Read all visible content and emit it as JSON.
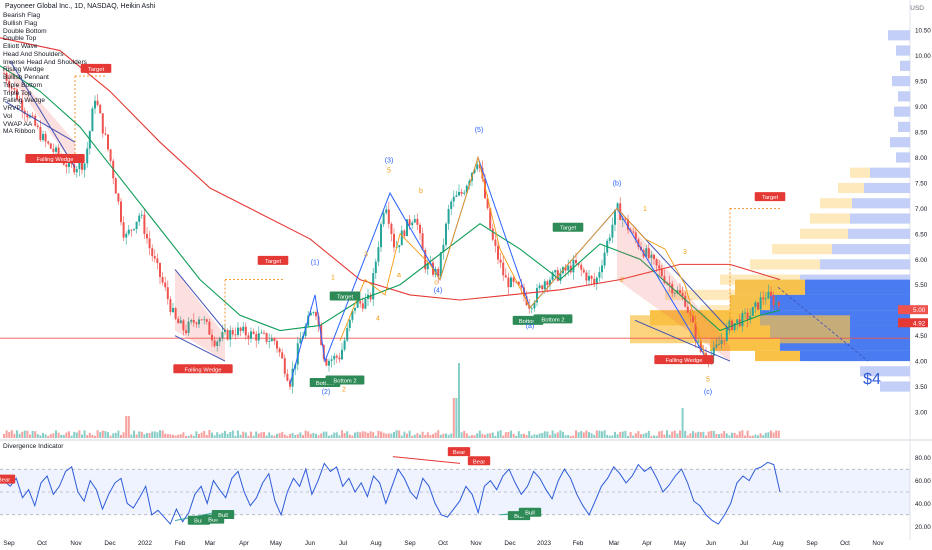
{
  "header": {
    "title": "Payoneer Global Inc., 1D, NASDAQ, Heikin Ashi",
    "currency": "USD"
  },
  "indicators": [
    "Bearish Flag",
    "Bullish Flag",
    "Double Bottom",
    "Double Top",
    "Elliott Wave",
    "Head And Shoulders",
    "Inverse Head And Shoulders",
    "Rising Wedge",
    "Bullish Pennant",
    "Triple Bottom",
    "Triple Top",
    "Falling Wedge",
    "VRVP",
    "Vol",
    "VWAP AA",
    "MA Ribbon"
  ],
  "colors": {
    "up": "#26a69a",
    "down": "#ef5350",
    "ma_green": "#0f9d58",
    "ma_red": "#e53935",
    "wedge": "#3f51b5",
    "wave": "#2962ff",
    "wave_minor": "#f39c12",
    "target": "#f57c00",
    "signal_green": "#2e8b57",
    "signal_red": "#e53935",
    "osc": "#2e5bd9",
    "vol_profile_blue": "#b9c7f5",
    "vol_profile_yellow": "#fde7b4"
  },
  "chart_data": [
    {
      "type": "candlestick",
      "y_axis": {
        "min": 3.0,
        "max": 10.7,
        "ticks": [
          "10.50",
          "10.00",
          "9.50",
          "9.00",
          "8.50",
          "8.00",
          "7.50",
          "7.00",
          "6.50",
          "6.00",
          "5.50",
          "5.00",
          "4.50",
          "4.00",
          "3.50",
          "3.00"
        ],
        "tick_values": [
          10.5,
          10.0,
          9.5,
          9.0,
          8.5,
          8.0,
          7.5,
          7.0,
          6.5,
          6.0,
          5.5,
          5.0,
          4.5,
          4.0,
          3.5,
          3.0
        ]
      },
      "x_axis": {
        "ticks": [
          "Sep",
          "Oct",
          "Nov",
          "Dec",
          "2022",
          "Feb",
          "Mar",
          "Apr",
          "May",
          "Jun",
          "Jul",
          "Aug",
          "Sep",
          "Oct",
          "Nov",
          "Dec",
          "2023",
          "Feb",
          "Mar",
          "Apr",
          "May",
          "Jun",
          "Jul",
          "Aug",
          "Sep",
          "Oct",
          "Nov"
        ]
      },
      "price_path": [
        [
          0,
          9.8
        ],
        [
          20,
          9.1
        ],
        [
          45,
          8.3
        ],
        [
          70,
          7.8
        ],
        [
          85,
          7.9
        ],
        [
          95,
          9.2
        ],
        [
          110,
          8.0
        ],
        [
          125,
          6.4
        ],
        [
          140,
          6.9
        ],
        [
          150,
          6.2
        ],
        [
          165,
          5.4
        ],
        [
          175,
          4.8
        ],
        [
          185,
          4.6
        ],
        [
          200,
          4.9
        ],
        [
          215,
          4.4
        ],
        [
          235,
          4.6
        ],
        [
          255,
          4.5
        ],
        [
          275,
          4.4
        ],
        [
          290,
          3.6
        ],
        [
          300,
          4.4
        ],
        [
          315,
          5.1
        ],
        [
          325,
          4.0
        ],
        [
          340,
          4.1
        ],
        [
          355,
          5.1
        ],
        [
          370,
          5.2
        ],
        [
          385,
          7.2
        ],
        [
          395,
          6.2
        ],
        [
          405,
          6.6
        ],
        [
          415,
          6.9
        ],
        [
          425,
          5.9
        ],
        [
          438,
          5.7
        ],
        [
          450,
          7.1
        ],
        [
          462,
          7.3
        ],
        [
          478,
          8.0
        ],
        [
          492,
          6.4
        ],
        [
          505,
          5.6
        ],
        [
          520,
          5.4
        ],
        [
          530,
          5.1
        ],
        [
          545,
          5.6
        ],
        [
          560,
          5.7
        ],
        [
          575,
          5.9
        ],
        [
          595,
          5.5
        ],
        [
          617,
          7.0
        ],
        [
          635,
          6.4
        ],
        [
          650,
          6.0
        ],
        [
          670,
          5.5
        ],
        [
          685,
          5.2
        ],
        [
          700,
          4.2
        ],
        [
          712,
          4.1
        ],
        [
          730,
          4.7
        ],
        [
          750,
          4.9
        ],
        [
          765,
          5.3
        ],
        [
          780,
          5.1
        ]
      ],
      "current_price": "5.00",
      "current_change": "4.92",
      "hline_price": 4.45,
      "volume_profile_note": "VRVP histogram on right side"
    },
    {
      "type": "line",
      "name": "Divergence Indicator",
      "y_axis": {
        "min": 15,
        "max": 85,
        "ticks": [
          "80.00",
          "60.00",
          "40.00",
          "20.00"
        ],
        "tick_values": [
          80,
          60,
          40,
          20
        ]
      },
      "band": [
        30,
        70
      ],
      "values": [
        60,
        55,
        62,
        45,
        52,
        38,
        58,
        64,
        48,
        55,
        68,
        72,
        50,
        42,
        60,
        52,
        35,
        48,
        58,
        62,
        40,
        36,
        45,
        55,
        30,
        34,
        28,
        22,
        35,
        24,
        32,
        48,
        55,
        40,
        60,
        52,
        45,
        62,
        68,
        50,
        38,
        45,
        58,
        66,
        42,
        30,
        50,
        62,
        55,
        70,
        48,
        60,
        75,
        68,
        72,
        55,
        62,
        50,
        58,
        46,
        64,
        58,
        40,
        55,
        70,
        62,
        50,
        44,
        62,
        55,
        40,
        30,
        28,
        35,
        42,
        55,
        48,
        32,
        55,
        60,
        52,
        64,
        70,
        58,
        48,
        55,
        68,
        62,
        52,
        44,
        60,
        70,
        62,
        48,
        38,
        30,
        42,
        55,
        62,
        72,
        66,
        58,
        64,
        74,
        68,
        72,
        62,
        50,
        56,
        64,
        70,
        58,
        42,
        38,
        30,
        25,
        22,
        30,
        40,
        58,
        64,
        60,
        70,
        72,
        76,
        74,
        50
      ]
    }
  ],
  "annotations": {
    "wave_labels": [
      "(1)",
      "(2)",
      "(3)",
      "(4)",
      "(5)",
      "(a)",
      "(b)",
      "(c)"
    ],
    "minor_labels": [
      "1",
      "2",
      "3",
      "4",
      "5",
      "a",
      "b",
      "c",
      "1",
      "2",
      "3",
      "4",
      "5"
    ],
    "bottom_labels": [
      "Bottom",
      "Bottom 2",
      "Bottom",
      "Bottom 2"
    ],
    "target_label": "Target",
    "wedge_label": "Falling Wedge",
    "bull_label": "Bull",
    "bear_label": "Bear",
    "price_note": "$4",
    "osc_title": "Divergence Indicator"
  }
}
